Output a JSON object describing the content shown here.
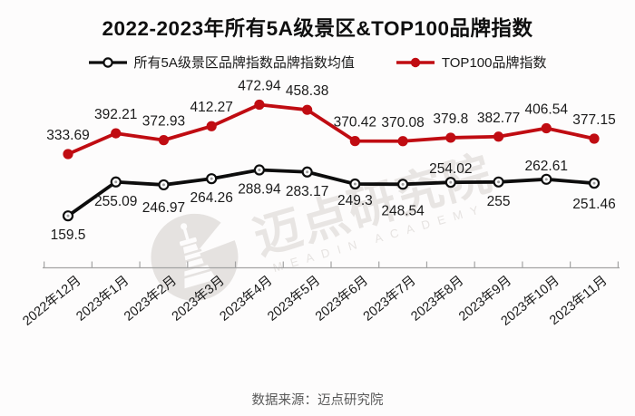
{
  "title": "2022-2023年所有5A级景区&TOP100品牌指数",
  "legend": {
    "items": [
      {
        "label": "所有5A级景区品牌指数品牌指数均值",
        "marker": "open-circle-line",
        "color": "#0d0d0d"
      },
      {
        "label": "TOP100品牌指数",
        "marker": "filled-circle-line",
        "color": "#c00c12"
      }
    ]
  },
  "chart_data": {
    "type": "line",
    "categories": [
      "2022年12月",
      "2023年1月",
      "2023年2月",
      "2023年3月",
      "2023年4月",
      "2023年5月",
      "2023年6月",
      "2023年7月",
      "2023年8月",
      "2023年9月",
      "2023年10月",
      "2023年11月"
    ],
    "series": [
      {
        "name": "所有5A级景区品牌指数品牌指数均值",
        "color": "#0d0d0d",
        "marker": "open-circle",
        "values": [
          159.5,
          255.09,
          246.97,
          264.26,
          288.94,
          283.17,
          249.3,
          248.54,
          254.02,
          255,
          262.61,
          251.46
        ],
        "label_positions": [
          "below",
          "below",
          "below",
          "below",
          "below",
          "below",
          "below",
          "below",
          "above",
          "below",
          "above",
          "below"
        ],
        "label_dy": [
          0,
          0,
          4,
          0,
          0,
          0,
          -3,
          8,
          0,
          0,
          0,
          2
        ]
      },
      {
        "name": "TOP100品牌指数",
        "color": "#c00c12",
        "marker": "filled-circle",
        "values": [
          333.69,
          392.21,
          372.93,
          412.27,
          472.94,
          458.38,
          370.42,
          370.08,
          379.8,
          382.77,
          406.54,
          377.15
        ],
        "label_positions": [
          "above",
          "above",
          "above",
          "above",
          "above",
          "above",
          "above",
          "above",
          "above",
          "above",
          "above",
          "above"
        ],
        "label_dy": [
          0,
          0,
          0,
          0,
          0,
          0,
          0,
          0,
          0,
          0,
          0,
          0
        ]
      }
    ],
    "ylim": [
      0,
      550
    ],
    "grid": false,
    "legend_position": "top",
    "data_labels": true,
    "x_axis": {
      "tick_count": 13,
      "label_rotation": -39
    }
  },
  "colors": {
    "background": "#fdfcfc",
    "axis": "#a3a3a3",
    "data_label": "#1a1a1a",
    "footer": "#595959",
    "watermark": "#e8e5e3"
  },
  "watermark": {
    "logo": "lighthouse-tower-icon",
    "text": "迈点研究院",
    "subtext": "MEADIN ACADEMY"
  },
  "footer": {
    "source": "数据来源：迈点研究院"
  }
}
